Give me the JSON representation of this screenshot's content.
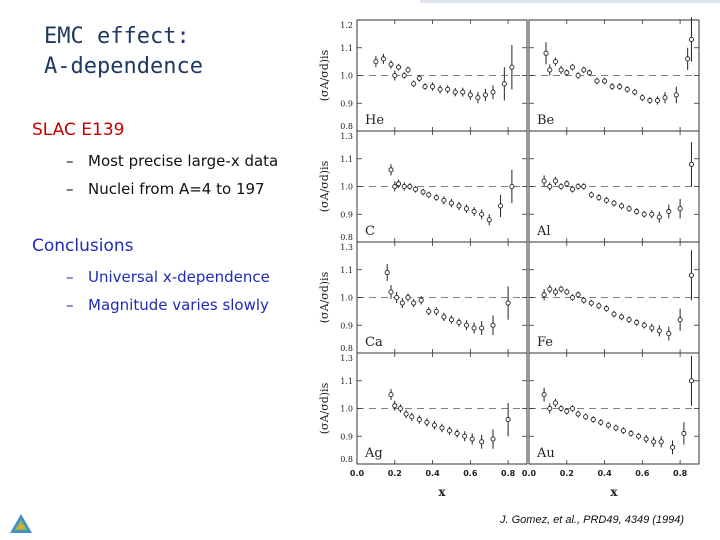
{
  "slide": {
    "title_line1": "EMC effect:",
    "title_line2": "A-dependence",
    "section1": "SLAC E139",
    "bullets1": [
      "Most precise large-x data",
      "Nuclei from A=4 to 197"
    ],
    "section2": "Conclusions",
    "bullets2": [
      "Universal x-dependence",
      "Magnitude varies slowly"
    ],
    "citation": "J. Gomez, et al., PRD49, 4349 (1994)",
    "dash": "–",
    "colors": {
      "title": "#1f3864",
      "section1": "#c00000",
      "section2": "#1f2bb8",
      "conclusions_text": "#1f2bb8"
    }
  },
  "chart_data": {
    "type": "scatter",
    "layout": "4x2 panel grid",
    "ylabel": "(σA/σd)is",
    "xlabel": "x",
    "xlim": [
      0.0,
      0.9
    ],
    "ylim": [
      0.8,
      1.2
    ],
    "x_ticks": [
      "0.0",
      "0.2",
      "0.4",
      "0.6",
      "0.8"
    ],
    "y_ticks": [
      "0.8",
      "0.9",
      "1.0",
      "1.1",
      "1.2"
    ],
    "panel_top_labels": [
      "1.2",
      "1.3",
      "1.3",
      "1.3"
    ],
    "reference_line": 1.0,
    "panels": [
      {
        "nucleus": "He",
        "points": [
          [
            0.1,
            1.05,
            0.02
          ],
          [
            0.14,
            1.06,
            0.018
          ],
          [
            0.18,
            1.04,
            0.015
          ],
          [
            0.2,
            1.0,
            0.018
          ],
          [
            0.22,
            1.03,
            0.012
          ],
          [
            0.25,
            1.0,
            0.012
          ],
          [
            0.27,
            1.02,
            0.012
          ],
          [
            0.3,
            0.97,
            0.012
          ],
          [
            0.33,
            0.99,
            0.012
          ],
          [
            0.36,
            0.96,
            0.012
          ],
          [
            0.4,
            0.96,
            0.015
          ],
          [
            0.44,
            0.95,
            0.015
          ],
          [
            0.48,
            0.95,
            0.015
          ],
          [
            0.52,
            0.94,
            0.015
          ],
          [
            0.56,
            0.94,
            0.016
          ],
          [
            0.6,
            0.93,
            0.018
          ],
          [
            0.64,
            0.92,
            0.02
          ],
          [
            0.68,
            0.93,
            0.022
          ],
          [
            0.72,
            0.94,
            0.025
          ],
          [
            0.78,
            0.97,
            0.06
          ],
          [
            0.82,
            1.03,
            0.08
          ]
        ]
      },
      {
        "nucleus": "Be",
        "points": [
          [
            0.09,
            1.08,
            0.04
          ],
          [
            0.11,
            1.02,
            0.02
          ],
          [
            0.14,
            1.05,
            0.015
          ],
          [
            0.17,
            1.02,
            0.015
          ],
          [
            0.2,
            1.01,
            0.012
          ],
          [
            0.23,
            1.03,
            0.012
          ],
          [
            0.26,
            1.0,
            0.012
          ],
          [
            0.29,
            1.02,
            0.012
          ],
          [
            0.32,
            1.01,
            0.012
          ],
          [
            0.36,
            0.98,
            0.012
          ],
          [
            0.4,
            0.98,
            0.012
          ],
          [
            0.44,
            0.96,
            0.012
          ],
          [
            0.48,
            0.96,
            0.012
          ],
          [
            0.52,
            0.95,
            0.012
          ],
          [
            0.56,
            0.94,
            0.012
          ],
          [
            0.6,
            0.92,
            0.012
          ],
          [
            0.64,
            0.91,
            0.012
          ],
          [
            0.68,
            0.91,
            0.015
          ],
          [
            0.72,
            0.92,
            0.02
          ],
          [
            0.78,
            0.93,
            0.03
          ],
          [
            0.84,
            1.06,
            0.04
          ],
          [
            0.86,
            1.13,
            0.08
          ]
        ]
      },
      {
        "nucleus": "C",
        "points": [
          [
            0.18,
            1.06,
            0.02
          ],
          [
            0.2,
            1.0,
            0.018
          ],
          [
            0.22,
            1.01,
            0.015
          ],
          [
            0.25,
            1.0,
            0.015
          ],
          [
            0.28,
            1.0,
            0.012
          ],
          [
            0.31,
            0.99,
            0.012
          ],
          [
            0.35,
            0.98,
            0.012
          ],
          [
            0.38,
            0.97,
            0.012
          ],
          [
            0.42,
            0.96,
            0.012
          ],
          [
            0.46,
            0.95,
            0.015
          ],
          [
            0.5,
            0.94,
            0.015
          ],
          [
            0.54,
            0.93,
            0.015
          ],
          [
            0.58,
            0.92,
            0.015
          ],
          [
            0.62,
            0.91,
            0.016
          ],
          [
            0.66,
            0.9,
            0.018
          ],
          [
            0.7,
            0.88,
            0.02
          ],
          [
            0.76,
            0.93,
            0.04
          ],
          [
            0.82,
            1.0,
            0.06
          ]
        ]
      },
      {
        "nucleus": "Al",
        "points": [
          [
            0.08,
            1.02,
            0.02
          ],
          [
            0.11,
            1.0,
            0.015
          ],
          [
            0.14,
            1.02,
            0.015
          ],
          [
            0.17,
            1.0,
            0.012
          ],
          [
            0.2,
            1.01,
            0.012
          ],
          [
            0.23,
            0.99,
            0.012
          ],
          [
            0.26,
            1.0,
            0.012
          ],
          [
            0.29,
            1.0,
            0.012
          ],
          [
            0.33,
            0.97,
            0.012
          ],
          [
            0.37,
            0.96,
            0.012
          ],
          [
            0.41,
            0.95,
            0.012
          ],
          [
            0.45,
            0.94,
            0.012
          ],
          [
            0.49,
            0.93,
            0.012
          ],
          [
            0.53,
            0.92,
            0.012
          ],
          [
            0.57,
            0.91,
            0.012
          ],
          [
            0.61,
            0.9,
            0.012
          ],
          [
            0.65,
            0.9,
            0.015
          ],
          [
            0.69,
            0.89,
            0.02
          ],
          [
            0.74,
            0.91,
            0.025
          ],
          [
            0.8,
            0.92,
            0.035
          ],
          [
            0.86,
            1.08,
            0.08
          ]
        ]
      },
      {
        "nucleus": "Ca",
        "points": [
          [
            0.16,
            1.09,
            0.03
          ],
          [
            0.18,
            1.02,
            0.025
          ],
          [
            0.21,
            1.0,
            0.02
          ],
          [
            0.24,
            0.98,
            0.018
          ],
          [
            0.27,
            1.0,
            0.015
          ],
          [
            0.3,
            0.98,
            0.015
          ],
          [
            0.34,
            0.99,
            0.015
          ],
          [
            0.38,
            0.95,
            0.015
          ],
          [
            0.42,
            0.95,
            0.015
          ],
          [
            0.46,
            0.93,
            0.015
          ],
          [
            0.5,
            0.92,
            0.015
          ],
          [
            0.54,
            0.91,
            0.015
          ],
          [
            0.58,
            0.9,
            0.018
          ],
          [
            0.62,
            0.89,
            0.02
          ],
          [
            0.66,
            0.89,
            0.025
          ],
          [
            0.72,
            0.9,
            0.035
          ],
          [
            0.8,
            0.98,
            0.06
          ]
        ]
      },
      {
        "nucleus": "Fe",
        "points": [
          [
            0.08,
            1.01,
            0.02
          ],
          [
            0.11,
            1.03,
            0.015
          ],
          [
            0.14,
            1.02,
            0.015
          ],
          [
            0.17,
            1.03,
            0.012
          ],
          [
            0.2,
            1.02,
            0.012
          ],
          [
            0.23,
            1.0,
            0.012
          ],
          [
            0.26,
            1.01,
            0.012
          ],
          [
            0.29,
            0.99,
            0.012
          ],
          [
            0.33,
            0.98,
            0.012
          ],
          [
            0.37,
            0.97,
            0.012
          ],
          [
            0.41,
            0.96,
            0.012
          ],
          [
            0.45,
            0.94,
            0.012
          ],
          [
            0.49,
            0.93,
            0.012
          ],
          [
            0.53,
            0.92,
            0.012
          ],
          [
            0.57,
            0.91,
            0.012
          ],
          [
            0.61,
            0.9,
            0.012
          ],
          [
            0.65,
            0.89,
            0.015
          ],
          [
            0.69,
            0.88,
            0.02
          ],
          [
            0.74,
            0.87,
            0.025
          ],
          [
            0.8,
            0.92,
            0.04
          ],
          [
            0.86,
            1.08,
            0.09
          ]
        ]
      },
      {
        "nucleus": "Ag",
        "points": [
          [
            0.18,
            1.05,
            0.02
          ],
          [
            0.2,
            1.01,
            0.018
          ],
          [
            0.23,
            1.0,
            0.015
          ],
          [
            0.26,
            0.98,
            0.015
          ],
          [
            0.29,
            0.97,
            0.015
          ],
          [
            0.33,
            0.96,
            0.015
          ],
          [
            0.37,
            0.95,
            0.015
          ],
          [
            0.41,
            0.94,
            0.015
          ],
          [
            0.45,
            0.93,
            0.015
          ],
          [
            0.49,
            0.92,
            0.015
          ],
          [
            0.53,
            0.91,
            0.015
          ],
          [
            0.57,
            0.9,
            0.018
          ],
          [
            0.61,
            0.89,
            0.02
          ],
          [
            0.66,
            0.88,
            0.025
          ],
          [
            0.72,
            0.89,
            0.035
          ],
          [
            0.8,
            0.96,
            0.06
          ]
        ]
      },
      {
        "nucleus": "Au",
        "points": [
          [
            0.08,
            1.05,
            0.025
          ],
          [
            0.11,
            1.0,
            0.018
          ],
          [
            0.14,
            1.02,
            0.015
          ],
          [
            0.17,
            1.0,
            0.012
          ],
          [
            0.2,
            0.99,
            0.012
          ],
          [
            0.23,
            1.0,
            0.012
          ],
          [
            0.26,
            0.98,
            0.012
          ],
          [
            0.3,
            0.97,
            0.012
          ],
          [
            0.34,
            0.96,
            0.012
          ],
          [
            0.38,
            0.95,
            0.012
          ],
          [
            0.42,
            0.94,
            0.012
          ],
          [
            0.46,
            0.93,
            0.012
          ],
          [
            0.5,
            0.92,
            0.012
          ],
          [
            0.54,
            0.91,
            0.012
          ],
          [
            0.58,
            0.9,
            0.012
          ],
          [
            0.62,
            0.89,
            0.015
          ],
          [
            0.66,
            0.88,
            0.018
          ],
          [
            0.7,
            0.88,
            0.02
          ],
          [
            0.76,
            0.86,
            0.025
          ],
          [
            0.82,
            0.91,
            0.04
          ],
          [
            0.86,
            1.1,
            0.09
          ]
        ]
      }
    ]
  }
}
